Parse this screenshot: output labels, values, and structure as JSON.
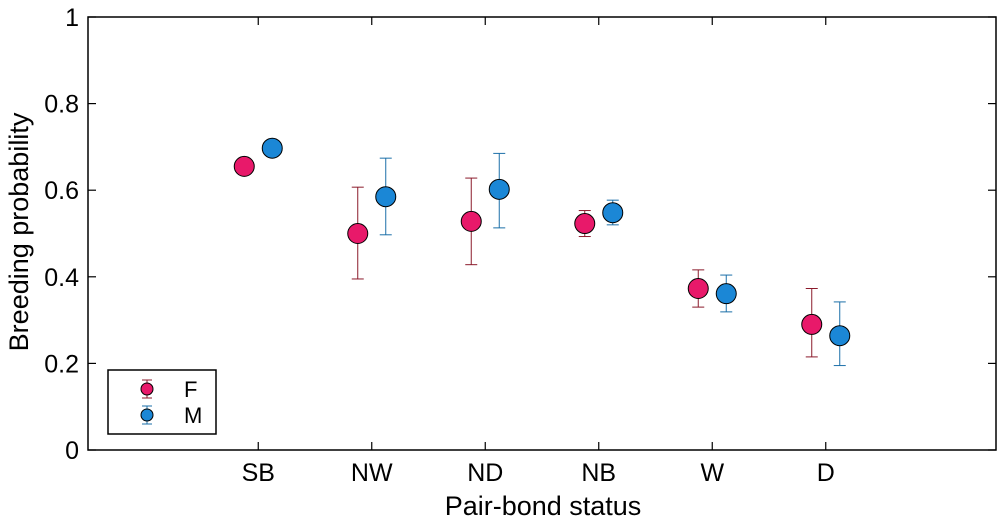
{
  "chart_data": {
    "type": "scatter",
    "title": "",
    "xlabel": "Pair-bond status",
    "ylabel": "Breeding probability",
    "categories": [
      "SB",
      "NW",
      "ND",
      "NB",
      "W",
      "D"
    ],
    "ylim": [
      0,
      1
    ],
    "yticks": [
      "0",
      "0.2",
      "0.4",
      "0.6",
      "0.8",
      "1"
    ],
    "grid": false,
    "legend_position": "bottom-left",
    "series": [
      {
        "name": "F",
        "color": "#e8196a",
        "error_color": "#8b1a2b",
        "values": [
          0.655,
          0.5,
          0.528,
          0.523,
          0.373,
          0.29
        ],
        "lower": [
          0.655,
          0.395,
          0.428,
          0.493,
          0.33,
          0.215
        ],
        "upper": [
          0.655,
          0.607,
          0.628,
          0.553,
          0.416,
          0.373
        ]
      },
      {
        "name": "M",
        "color": "#1b87d6",
        "error_color": "#1b6fa8",
        "values": [
          0.697,
          0.585,
          0.602,
          0.548,
          0.361,
          0.264
        ],
        "lower": [
          0.697,
          0.497,
          0.513,
          0.52,
          0.319,
          0.195
        ],
        "upper": [
          0.697,
          0.674,
          0.685,
          0.577,
          0.404,
          0.342
        ]
      }
    ]
  }
}
